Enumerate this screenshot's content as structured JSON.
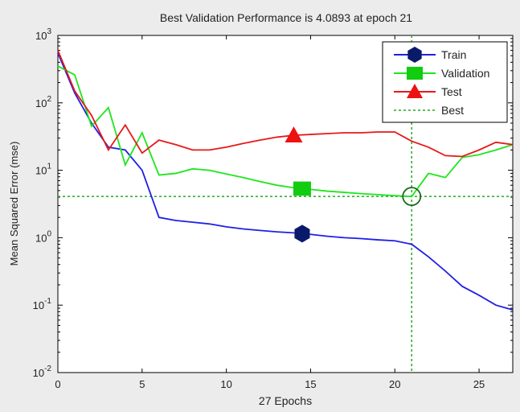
{
  "chart_data": {
    "type": "line",
    "title": "Best Validation Performance is 4.0893 at epoch 21",
    "xlabel": "27 Epochs",
    "ylabel": "Mean Squared Error  (mse)",
    "xlim": [
      0,
      27
    ],
    "ylim_log10": [
      -2,
      3
    ],
    "yscale": "log",
    "grid": false,
    "legend_position": "top-right",
    "xticks": [
      {
        "value": 0,
        "label": "0"
      },
      {
        "value": 5,
        "label": "5"
      },
      {
        "value": 10,
        "label": "10"
      },
      {
        "value": 15,
        "label": "15"
      },
      {
        "value": 20,
        "label": "20"
      },
      {
        "value": 25,
        "label": "25"
      }
    ],
    "yticks": [
      {
        "exp": 3,
        "base": "10",
        "sup": "3"
      },
      {
        "exp": 2,
        "base": "10",
        "sup": "2"
      },
      {
        "exp": 1,
        "base": "10",
        "sup": "1"
      },
      {
        "exp": 0,
        "base": "10",
        "sup": "0"
      },
      {
        "exp": -1,
        "base": "10",
        "sup": "-1"
      },
      {
        "exp": -2,
        "base": "10",
        "sup": "-2"
      }
    ],
    "x": [
      0,
      1,
      2,
      3,
      4,
      5,
      6,
      7,
      8,
      9,
      10,
      11,
      12,
      13,
      14,
      15,
      16,
      17,
      18,
      19,
      20,
      21,
      22,
      23,
      24,
      25,
      26,
      27
    ],
    "series": [
      {
        "name": "Train",
        "color": "#1f1fe6",
        "marker": "hexagon",
        "marker_color": "#0a1a6b",
        "marker_epoch": 14.5,
        "values": [
          550,
          140,
          50,
          22,
          20,
          10,
          2.0,
          1.8,
          1.7,
          1.6,
          1.45,
          1.35,
          1.28,
          1.22,
          1.18,
          1.12,
          1.05,
          1.0,
          0.97,
          0.93,
          0.9,
          0.8,
          0.52,
          0.32,
          0.19,
          0.14,
          0.1,
          0.085
        ]
      },
      {
        "name": "Validation",
        "color": "#1ee61e",
        "marker": "square",
        "marker_color": "#11cc11",
        "marker_epoch": 14.5,
        "values": [
          350,
          260,
          45,
          85,
          12,
          36,
          8.5,
          9.0,
          10.5,
          10.0,
          8.8,
          7.8,
          6.8,
          6.0,
          5.5,
          5.2,
          4.9,
          4.7,
          4.5,
          4.35,
          4.2,
          4.0893,
          9.0,
          7.8,
          15.5,
          17,
          20,
          24
        ]
      },
      {
        "name": "Test",
        "color": "#e81818",
        "marker": "triangle",
        "marker_color": "#ee1111",
        "marker_epoch": 14,
        "values": [
          600,
          150,
          65,
          20,
          47,
          18,
          28,
          24,
          20,
          20,
          22,
          25,
          28,
          31,
          33,
          34,
          35,
          36,
          36,
          37,
          37,
          27,
          22,
          16.5,
          16,
          20,
          26,
          24
        ]
      }
    ],
    "best": {
      "name": "Best",
      "color": "#22aa22",
      "epoch": 21,
      "value": 4.0893,
      "circle_color": "#1a6a1a"
    }
  }
}
